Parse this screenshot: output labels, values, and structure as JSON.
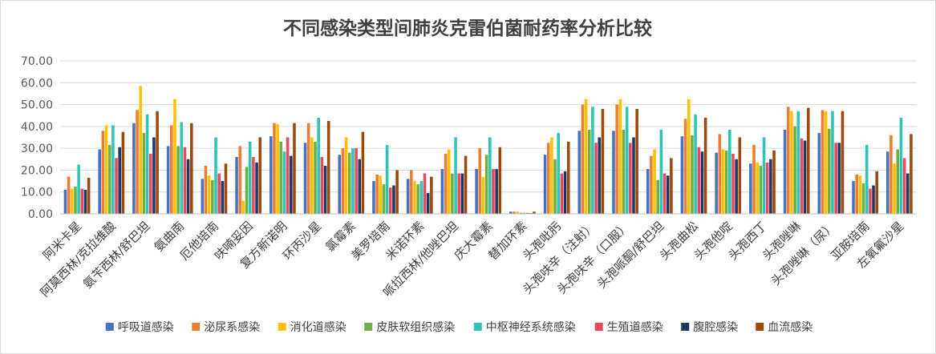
{
  "chart_data": {
    "type": "bar",
    "title": "不同感染类型间肺炎克雷伯菌耐药率分析比较",
    "xlabel": "",
    "ylabel": "",
    "ylim": [
      0,
      70
    ],
    "yticks": [
      "0.00",
      "10.00",
      "20.00",
      "30.00",
      "40.00",
      "50.00",
      "60.00",
      "70.00"
    ],
    "grid": true,
    "legend_position": "bottom",
    "categories": [
      "阿米卡星",
      "阿莫西林/克拉维酸",
      "氨苄西林/舒巴坦",
      "氨曲南",
      "厄他培南",
      "呋喃妥因",
      "复方新诺明",
      "环丙沙星",
      "氯霉素",
      "美罗培南",
      "米诺环素",
      "哌拉西林/他唑巴坦",
      "庆大霉素",
      "替加环素",
      "头孢吡肟",
      "头孢呋辛（注射）",
      "头孢呋辛（口服）",
      "头孢哌酮/舒巴坦",
      "头孢曲松",
      "头孢他啶",
      "头孢西丁",
      "头孢唑啉",
      "头孢唑啉（尿）",
      "亚胺培南",
      "左氧氟沙星"
    ],
    "series": [
      {
        "name": "呼吸道感染",
        "color": "#4472C4",
        "values": [
          11.0,
          29.5,
          41.5,
          31.0,
          16.0,
          26.0,
          35.5,
          32.5,
          27.0,
          15.0,
          16.0,
          20.5,
          20.5,
          1.0,
          27.0,
          38.0,
          38.0,
          20.5,
          35.5,
          28.0,
          23.0,
          38.5,
          37.0,
          15.0,
          28.5
        ]
      },
      {
        "name": "泌尿系感染",
        "color": "#ED7D31",
        "values": [
          17.0,
          38.0,
          47.5,
          40.5,
          22.0,
          31.0,
          41.5,
          41.5,
          30.0,
          18.0,
          20.0,
          27.5,
          30.0,
          1.0,
          32.5,
          50.0,
          50.0,
          26.5,
          43.5,
          36.5,
          31.5,
          49.0,
          47.5,
          18.0,
          36.0
        ]
      },
      {
        "name": "消化道感染",
        "color": "#FFC000",
        "values": [
          11.5,
          40.5,
          58.5,
          52.5,
          17.5,
          6.0,
          41.0,
          35.0,
          35.0,
          17.5,
          15.0,
          29.5,
          17.0,
          1.0,
          35.0,
          52.5,
          52.5,
          29.5,
          52.5,
          29.5,
          23.5,
          47.0,
          47.0,
          17.5,
          23.0
        ]
      },
      {
        "name": "皮肤软组织感染",
        "color": "#70AD47",
        "values": [
          12.5,
          31.5,
          37.0,
          31.0,
          15.5,
          21.5,
          33.0,
          33.0,
          28.0,
          13.5,
          13.5,
          18.5,
          27.0,
          0.5,
          25.0,
          38.5,
          38.5,
          15.5,
          36.0,
          29.0,
          22.0,
          40.0,
          39.0,
          14.0,
          29.5
        ]
      },
      {
        "name": "中枢神经系统感染",
        "color": "#2EC4B6",
        "values": [
          22.5,
          40.5,
          45.5,
          42.0,
          35.0,
          33.0,
          28.5,
          44.0,
          30.0,
          31.5,
          15.0,
          35.0,
          35.0,
          0.5,
          37.0,
          49.0,
          49.0,
          38.5,
          45.5,
          38.5,
          35.0,
          47.0,
          47.0,
          31.5,
          44.0
        ]
      },
      {
        "name": "生殖道感染",
        "color": "#E84A5F",
        "values": [
          11.5,
          25.5,
          27.5,
          30.5,
          18.5,
          26.0,
          35.0,
          26.0,
          30.0,
          12.0,
          18.5,
          18.5,
          20.5,
          0.5,
          18.5,
          32.5,
          32.5,
          18.5,
          30.5,
          27.5,
          23.5,
          34.5,
          32.5,
          11.5,
          25.5
        ]
      },
      {
        "name": "腹腔感染",
        "color": "#1F3864",
        "values": [
          11.0,
          30.5,
          35.0,
          25.0,
          15.0,
          23.5,
          26.5,
          22.0,
          25.0,
          13.0,
          9.5,
          18.5,
          20.5,
          0.3,
          19.5,
          35.0,
          35.0,
          17.5,
          28.5,
          25.0,
          25.0,
          33.5,
          32.5,
          13.0,
          18.5
        ]
      },
      {
        "name": "血流感染",
        "color": "#9E480E",
        "values": [
          16.5,
          37.5,
          47.0,
          41.5,
          23.0,
          35.0,
          41.5,
          42.5,
          37.5,
          20.0,
          17.0,
          26.5,
          30.5,
          1.0,
          33.0,
          48.0,
          48.0,
          25.5,
          44.0,
          35.0,
          29.0,
          48.5,
          47.0,
          19.5,
          36.5
        ]
      }
    ]
  }
}
